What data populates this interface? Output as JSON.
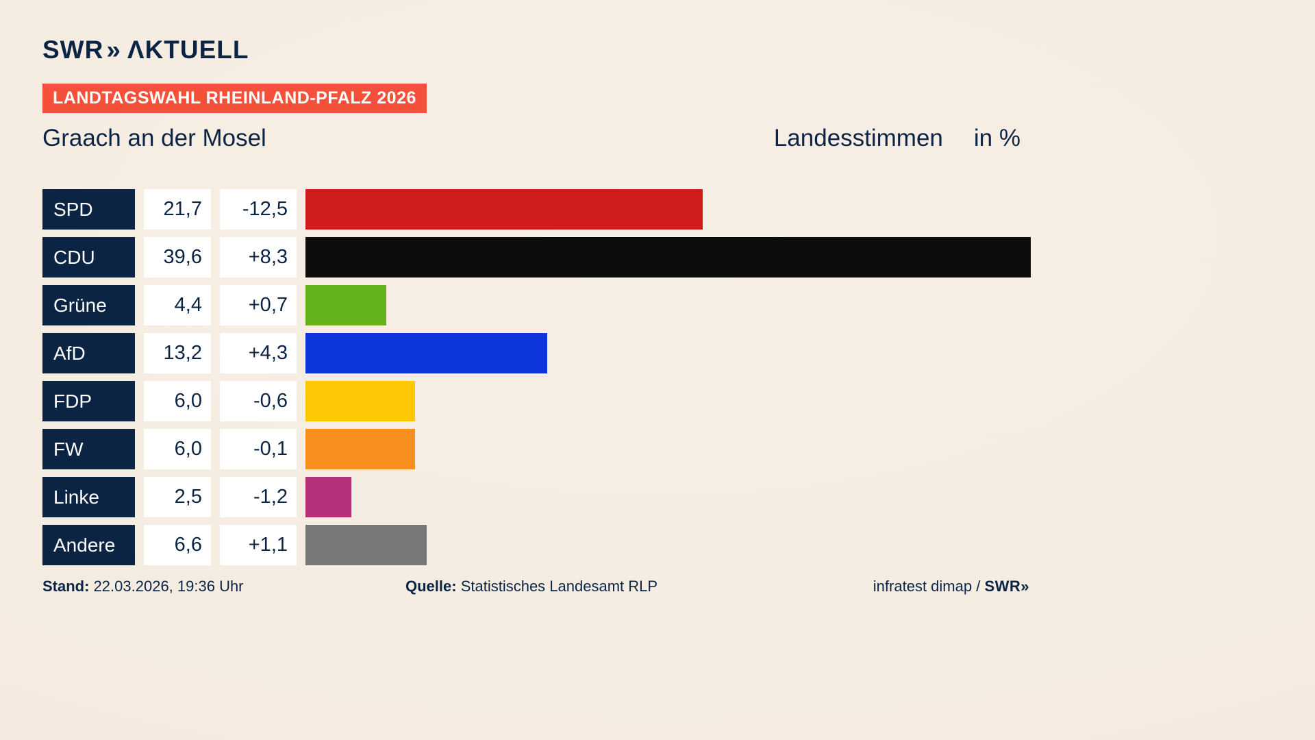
{
  "header": {
    "logo_swr": "SWR",
    "logo_chevrons": "»",
    "logo_aktuell": "ΛKTUELL",
    "badge": "LANDTAGSWAHL RHEINLAND-PFALZ 2026",
    "title": "Graach an der Mosel",
    "subtitle": "Landesstimmen",
    "unit": "in %"
  },
  "chart_data": {
    "type": "bar",
    "orientation": "horizontal",
    "title": "Graach an der Mosel — Landesstimmen in %",
    "categories": [
      "SPD",
      "CDU",
      "Grüne",
      "AfD",
      "FDP",
      "FW",
      "Linke",
      "Andere"
    ],
    "values": [
      21.7,
      39.6,
      4.4,
      13.2,
      6.0,
      6.0,
      2.5,
      6.6
    ],
    "changes": [
      -12.5,
      8.3,
      0.7,
      4.3,
      -0.6,
      -0.1,
      -1.2,
      1.1
    ],
    "value_labels": [
      "21,7",
      "39,6",
      "4,4",
      "13,2",
      "6,0",
      "6,0",
      "2,5",
      "6,6"
    ],
    "change_labels": [
      "-12,5",
      "+8,3",
      "+0,7",
      "+4,3",
      "-0,6",
      "-0,1",
      "-1,2",
      "+1,1"
    ],
    "colors": [
      "#d01c1c",
      "#0d0d0d",
      "#63b21e",
      "#0d35db",
      "#ffc805",
      "#f78f1f",
      "#b5307a",
      "#787878"
    ],
    "xmax": 39.6,
    "unit": "%",
    "legend": "none",
    "grid": false
  },
  "footer": {
    "stand_label": "Stand:",
    "stand_value": " 22.03.2026, 19:36 Uhr",
    "quelle_label": "Quelle:",
    "quelle_value": " Statistisches Landesamt RLP",
    "credit_text": "infratest dimap / ",
    "credit_logo": "SWR»"
  }
}
